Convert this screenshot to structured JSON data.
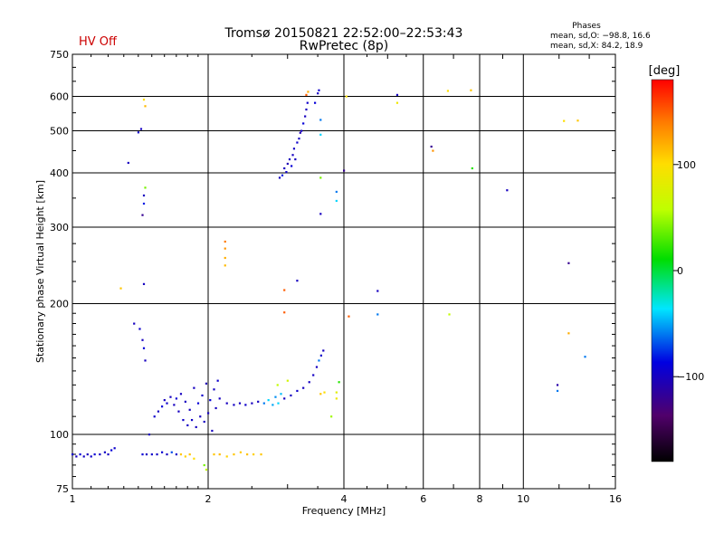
{
  "header": {
    "title": "Tromsø 20150821 22:52:00–22:53:43",
    "subtitle": "RwPretec (8p)",
    "status": "HV Off",
    "status_color": "#cc0000"
  },
  "phases": {
    "heading": "Phases",
    "line_o": "mean, sd,O: −98.8, 16.6",
    "line_x": "mean, sd,X:  84.2, 18.9"
  },
  "colorbar": {
    "label": "[deg]",
    "range": [
      -180,
      180
    ],
    "ticks": [
      "100",
      "0",
      "−100"
    ],
    "tick_values": [
      100,
      0,
      -100
    ]
  },
  "chart_data": {
    "type": "scatter",
    "title": "Tromsø 20150821 22:52:00–22:53:43",
    "subtitle": "RwPretec (8p)",
    "xlabel": "Frequency [MHz]",
    "ylabel": "Stationary phase Virtual Height [km]",
    "x_scale": "log",
    "y_scale": "log",
    "xlim": [
      1,
      16
    ],
    "ylim": [
      75,
      750
    ],
    "x_ticks": [
      1,
      2,
      4,
      6,
      8,
      10,
      16
    ],
    "x_tick_labels": [
      "1",
      "2",
      "4",
      "6",
      "8",
      "10",
      "16"
    ],
    "y_ticks": [
      75,
      100,
      200,
      300,
      400,
      500,
      600,
      750
    ],
    "y_tick_labels": [
      "75",
      "100",
      "200",
      "300",
      "400",
      "500",
      "600",
      "750"
    ],
    "grid": true,
    "points": [
      {
        "x": 1.0,
        "y": 90,
        "phase": -95
      },
      {
        "x": 1.02,
        "y": 89,
        "phase": -100
      },
      {
        "x": 1.04,
        "y": 90,
        "phase": -90
      },
      {
        "x": 1.06,
        "y": 89,
        "phase": -98
      },
      {
        "x": 1.08,
        "y": 90,
        "phase": -102
      },
      {
        "x": 1.1,
        "y": 89,
        "phase": -95
      },
      {
        "x": 1.12,
        "y": 90,
        "phase": -92
      },
      {
        "x": 1.15,
        "y": 90,
        "phase": -99
      },
      {
        "x": 1.18,
        "y": 91,
        "phase": -97
      },
      {
        "x": 1.2,
        "y": 90,
        "phase": -100
      },
      {
        "x": 1.22,
        "y": 92,
        "phase": -90
      },
      {
        "x": 1.24,
        "y": 93,
        "phase": -95
      },
      {
        "x": 1.43,
        "y": 90,
        "phase": -90
      },
      {
        "x": 1.46,
        "y": 90,
        "phase": -100
      },
      {
        "x": 1.5,
        "y": 90,
        "phase": -95
      },
      {
        "x": 1.54,
        "y": 90,
        "phase": -98
      },
      {
        "x": 1.58,
        "y": 91,
        "phase": -92
      },
      {
        "x": 1.62,
        "y": 90,
        "phase": -100
      },
      {
        "x": 1.66,
        "y": 91,
        "phase": -70
      },
      {
        "x": 1.7,
        "y": 90,
        "phase": -96
      },
      {
        "x": 1.74,
        "y": 90,
        "phase": 110
      },
      {
        "x": 1.78,
        "y": 89,
        "phase": 105
      },
      {
        "x": 1.82,
        "y": 90,
        "phase": 112
      },
      {
        "x": 1.86,
        "y": 88,
        "phase": 100
      },
      {
        "x": 1.96,
        "y": 85,
        "phase": 40
      },
      {
        "x": 2.06,
        "y": 90,
        "phase": 110
      },
      {
        "x": 2.12,
        "y": 90,
        "phase": 115
      },
      {
        "x": 2.2,
        "y": 89,
        "phase": 105
      },
      {
        "x": 2.28,
        "y": 90,
        "phase": 110
      },
      {
        "x": 2.36,
        "y": 91,
        "phase": 108
      },
      {
        "x": 2.44,
        "y": 90,
        "phase": 112
      },
      {
        "x": 2.52,
        "y": 90,
        "phase": 106
      },
      {
        "x": 2.62,
        "y": 90,
        "phase": 110
      },
      {
        "x": 1.33,
        "y": 422,
        "phase": -100
      },
      {
        "x": 1.4,
        "y": 496,
        "phase": -95
      },
      {
        "x": 1.42,
        "y": 505,
        "phase": -100
      },
      {
        "x": 1.44,
        "y": 590,
        "phase": 100
      },
      {
        "x": 1.45,
        "y": 570,
        "phase": 115
      },
      {
        "x": 1.45,
        "y": 370,
        "phase": 40
      },
      {
        "x": 1.44,
        "y": 355,
        "phase": -100
      },
      {
        "x": 1.44,
        "y": 340,
        "phase": -80
      },
      {
        "x": 1.43,
        "y": 320,
        "phase": -120
      },
      {
        "x": 1.44,
        "y": 222,
        "phase": -100
      },
      {
        "x": 1.28,
        "y": 217,
        "phase": 110
      },
      {
        "x": 1.37,
        "y": 180,
        "phase": -100
      },
      {
        "x": 1.41,
        "y": 175,
        "phase": -95
      },
      {
        "x": 1.43,
        "y": 165,
        "phase": -100
      },
      {
        "x": 1.44,
        "y": 158,
        "phase": -90
      },
      {
        "x": 1.45,
        "y": 148,
        "phase": -100
      },
      {
        "x": 2.18,
        "y": 278,
        "phase": 140
      },
      {
        "x": 2.18,
        "y": 268,
        "phase": 130
      },
      {
        "x": 2.18,
        "y": 255,
        "phase": 120
      },
      {
        "x": 2.18,
        "y": 245,
        "phase": 115
      },
      {
        "x": 2.88,
        "y": 390,
        "phase": -100
      },
      {
        "x": 2.92,
        "y": 395,
        "phase": -80
      },
      {
        "x": 2.95,
        "y": 410,
        "phase": -100
      },
      {
        "x": 2.98,
        "y": 402,
        "phase": -95
      },
      {
        "x": 3.0,
        "y": 420,
        "phase": -105
      },
      {
        "x": 3.03,
        "y": 430,
        "phase": -100
      },
      {
        "x": 3.06,
        "y": 415,
        "phase": -90
      },
      {
        "x": 3.08,
        "y": 440,
        "phase": -100
      },
      {
        "x": 3.1,
        "y": 455,
        "phase": -98
      },
      {
        "x": 3.12,
        "y": 430,
        "phase": -100
      },
      {
        "x": 3.15,
        "y": 470,
        "phase": -95
      },
      {
        "x": 3.18,
        "y": 480,
        "phase": -100
      },
      {
        "x": 3.2,
        "y": 495,
        "phase": -105
      },
      {
        "x": 3.22,
        "y": 500,
        "phase": -100
      },
      {
        "x": 3.25,
        "y": 520,
        "phase": -90
      },
      {
        "x": 3.28,
        "y": 540,
        "phase": -100
      },
      {
        "x": 3.3,
        "y": 560,
        "phase": -100
      },
      {
        "x": 3.32,
        "y": 580,
        "phase": -95
      },
      {
        "x": 3.3,
        "y": 605,
        "phase": 150
      },
      {
        "x": 3.33,
        "y": 615,
        "phase": 120
      },
      {
        "x": 3.45,
        "y": 580,
        "phase": -90
      },
      {
        "x": 3.5,
        "y": 610,
        "phase": -100
      },
      {
        "x": 3.52,
        "y": 620,
        "phase": -95
      },
      {
        "x": 3.55,
        "y": 530,
        "phase": -60
      },
      {
        "x": 3.55,
        "y": 490,
        "phase": -40
      },
      {
        "x": 3.55,
        "y": 390,
        "phase": 40
      },
      {
        "x": 3.55,
        "y": 322,
        "phase": -100
      },
      {
        "x": 3.85,
        "y": 362,
        "phase": -60
      },
      {
        "x": 3.85,
        "y": 345,
        "phase": -40
      },
      {
        "x": 4.0,
        "y": 405,
        "phase": -120
      },
      {
        "x": 4.05,
        "y": 600,
        "phase": 100
      },
      {
        "x": 4.1,
        "y": 187,
        "phase": 150
      },
      {
        "x": 5.25,
        "y": 605,
        "phase": -100
      },
      {
        "x": 5.25,
        "y": 580,
        "phase": 90
      },
      {
        "x": 6.25,
        "y": 460,
        "phase": -120
      },
      {
        "x": 6.3,
        "y": 450,
        "phase": 130
      },
      {
        "x": 6.8,
        "y": 618,
        "phase": 100
      },
      {
        "x": 7.65,
        "y": 620,
        "phase": 110
      },
      {
        "x": 7.7,
        "y": 410,
        "phase": 20
      },
      {
        "x": 9.2,
        "y": 365,
        "phase": -100
      },
      {
        "x": 6.85,
        "y": 189,
        "phase": 60
      },
      {
        "x": 4.75,
        "y": 214,
        "phase": -100
      },
      {
        "x": 4.75,
        "y": 189,
        "phase": -60
      },
      {
        "x": 3.15,
        "y": 226,
        "phase": -100
      },
      {
        "x": 2.95,
        "y": 215,
        "phase": 150
      },
      {
        "x": 2.95,
        "y": 191,
        "phase": 150
      },
      {
        "x": 12.6,
        "y": 248,
        "phase": -120
      },
      {
        "x": 12.6,
        "y": 171,
        "phase": 120
      },
      {
        "x": 11.9,
        "y": 126,
        "phase": -60
      },
      {
        "x": 11.9,
        "y": 130,
        "phase": -110
      },
      {
        "x": 12.3,
        "y": 527,
        "phase": 100
      },
      {
        "x": 13.2,
        "y": 528,
        "phase": 110
      },
      {
        "x": 13.7,
        "y": 151,
        "phase": -60
      },
      {
        "x": 1.48,
        "y": 100,
        "phase": -100
      },
      {
        "x": 1.52,
        "y": 110,
        "phase": -95
      },
      {
        "x": 1.55,
        "y": 113,
        "phase": -100
      },
      {
        "x": 1.58,
        "y": 116,
        "phase": -90
      },
      {
        "x": 1.6,
        "y": 120,
        "phase": -100
      },
      {
        "x": 1.62,
        "y": 118,
        "phase": -95
      },
      {
        "x": 1.65,
        "y": 122,
        "phase": -100
      },
      {
        "x": 1.68,
        "y": 117,
        "phase": -100
      },
      {
        "x": 1.7,
        "y": 121,
        "phase": -92
      },
      {
        "x": 1.72,
        "y": 113,
        "phase": -100
      },
      {
        "x": 1.74,
        "y": 124,
        "phase": -100
      },
      {
        "x": 1.76,
        "y": 108,
        "phase": -95
      },
      {
        "x": 1.78,
        "y": 119,
        "phase": -100
      },
      {
        "x": 1.8,
        "y": 105,
        "phase": -98
      },
      {
        "x": 1.82,
        "y": 114,
        "phase": -100
      },
      {
        "x": 1.84,
        "y": 108,
        "phase": -96
      },
      {
        "x": 1.86,
        "y": 128,
        "phase": -100
      },
      {
        "x": 1.88,
        "y": 104,
        "phase": -100
      },
      {
        "x": 1.9,
        "y": 118,
        "phase": -90
      },
      {
        "x": 1.92,
        "y": 110,
        "phase": -100
      },
      {
        "x": 1.94,
        "y": 123,
        "phase": -95
      },
      {
        "x": 1.96,
        "y": 107,
        "phase": -100
      },
      {
        "x": 1.98,
        "y": 131,
        "phase": -105
      },
      {
        "x": 2.0,
        "y": 112,
        "phase": -100
      },
      {
        "x": 2.02,
        "y": 120,
        "phase": -90
      },
      {
        "x": 2.04,
        "y": 102,
        "phase": -100
      },
      {
        "x": 2.06,
        "y": 127,
        "phase": -98
      },
      {
        "x": 2.08,
        "y": 115,
        "phase": -100
      },
      {
        "x": 2.1,
        "y": 133,
        "phase": -95
      },
      {
        "x": 2.12,
        "y": 121,
        "phase": -100
      },
      {
        "x": 2.2,
        "y": 118,
        "phase": -100
      },
      {
        "x": 2.28,
        "y": 117,
        "phase": -98
      },
      {
        "x": 2.35,
        "y": 118,
        "phase": -100
      },
      {
        "x": 2.42,
        "y": 117,
        "phase": -95
      },
      {
        "x": 2.5,
        "y": 118,
        "phase": -100
      },
      {
        "x": 2.58,
        "y": 119,
        "phase": -100
      },
      {
        "x": 2.66,
        "y": 118,
        "phase": -60
      },
      {
        "x": 2.72,
        "y": 120,
        "phase": -40
      },
      {
        "x": 2.78,
        "y": 117,
        "phase": -50
      },
      {
        "x": 2.82,
        "y": 122,
        "phase": -55
      },
      {
        "x": 2.86,
        "y": 118,
        "phase": -40
      },
      {
        "x": 2.9,
        "y": 124,
        "phase": -45
      },
      {
        "x": 2.95,
        "y": 121,
        "phase": -100
      },
      {
        "x": 3.05,
        "y": 123,
        "phase": -100
      },
      {
        "x": 3.15,
        "y": 126,
        "phase": -95
      },
      {
        "x": 3.25,
        "y": 128,
        "phase": -100
      },
      {
        "x": 3.35,
        "y": 132,
        "phase": -100
      },
      {
        "x": 3.42,
        "y": 137,
        "phase": -98
      },
      {
        "x": 3.48,
        "y": 143,
        "phase": -100
      },
      {
        "x": 3.52,
        "y": 148,
        "phase": -60
      },
      {
        "x": 3.56,
        "y": 152,
        "phase": -95
      },
      {
        "x": 3.6,
        "y": 156,
        "phase": -100
      },
      {
        "x": 3.55,
        "y": 124,
        "phase": 110
      },
      {
        "x": 3.62,
        "y": 125,
        "phase": 100
      },
      {
        "x": 3.85,
        "y": 125,
        "phase": 80
      },
      {
        "x": 3.85,
        "y": 121,
        "phase": 90
      },
      {
        "x": 3.9,
        "y": 132,
        "phase": 20
      },
      {
        "x": 3.75,
        "y": 110,
        "phase": 50
      },
      {
        "x": 3.0,
        "y": 133,
        "phase": 70
      },
      {
        "x": 2.85,
        "y": 130,
        "phase": 60
      },
      {
        "x": 1.98,
        "y": 83,
        "phase": 60
      }
    ]
  }
}
